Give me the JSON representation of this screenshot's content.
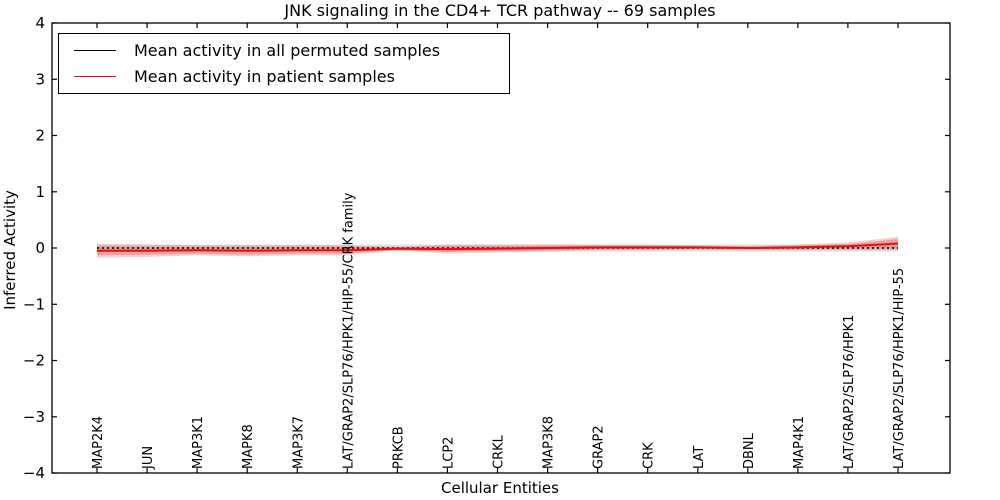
{
  "chart_data": {
    "type": "line",
    "title": "JNK signaling in the CD4+ TCR pathway -- 69 samples",
    "xlabel": "Cellular Entities",
    "ylabel": "Inferred Activity",
    "ylim": [
      -4,
      4
    ],
    "grid": false,
    "legend_position": "upper left",
    "yticks": {
      "values": [
        4,
        3,
        2,
        1,
        0,
        -1,
        -2,
        -3,
        -4
      ],
      "labels": [
        "4",
        "3",
        "2",
        "1",
        "0",
        "−1",
        "−2",
        "−3",
        "−4"
      ]
    },
    "categories": [
      "MAP2K4",
      "JUN",
      "MAP3K1",
      "MAPK8",
      "MAP3K7",
      "LAT/GRAP2/SLP76/HPK1/HIP-55/CRK family",
      "PRKCB",
      "LCP2",
      "CRKL",
      "MAP3K8",
      "GRAP2",
      "CRK",
      "LAT",
      "DBNL",
      "MAP4K1",
      "LAT/GRAP2/SLP76/HPK1",
      "LAT/GRAP2/SLP76/HPK1/HIP-55"
    ],
    "legend": [
      {
        "label": "Mean activity in all permuted samples",
        "color": "#000000"
      },
      {
        "label": "Mean activity in patient samples",
        "color": "#e01010"
      }
    ],
    "series": [
      {
        "name": "Mean activity in all permuted samples",
        "style": "dotted",
        "color": "#000000",
        "values": [
          0,
          0,
          0,
          0,
          0,
          0,
          0,
          0,
          0,
          0,
          0,
          0,
          0,
          0,
          0,
          0,
          0
        ]
      },
      {
        "name": "Mean activity in patient samples",
        "style": "solid",
        "color": "#e01010",
        "values": [
          -0.05,
          -0.05,
          -0.04,
          -0.05,
          -0.04,
          -0.04,
          -0.01,
          -0.02,
          -0.01,
          0.0,
          0.01,
          0.01,
          0.01,
          0.0,
          0.01,
          0.03,
          0.08
        ]
      }
    ],
    "bands": {
      "permuted_halfwidth": 0.06,
      "permuted_color": "#a8a8a8",
      "patient_color": "#e06060",
      "patient_inner_halfwidth": [
        0.08,
        0.07,
        0.06,
        0.07,
        0.06,
        0.06,
        0.02,
        0.05,
        0.04,
        0.04,
        0.03,
        0.03,
        0.02,
        0.02,
        0.03,
        0.04,
        0.08
      ],
      "patient_outer_halfwidth": [
        0.12,
        0.11,
        0.09,
        0.1,
        0.09,
        0.09,
        0.03,
        0.08,
        0.07,
        0.06,
        0.05,
        0.05,
        0.04,
        0.04,
        0.05,
        0.07,
        0.12
      ]
    }
  }
}
